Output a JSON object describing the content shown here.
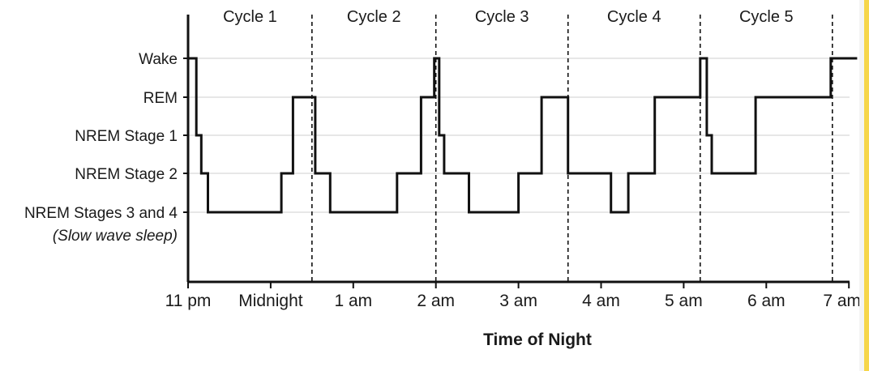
{
  "chart_data": {
    "type": "line",
    "title": "",
    "xlabel": "Time of Night",
    "ylabel": "",
    "x_ticks": [
      "11 pm",
      "Midnight",
      "1 am",
      "2 am",
      "3 am",
      "4 am",
      "5 am",
      "6 am",
      "7 am"
    ],
    "xlim_hours": [
      0,
      8.1
    ],
    "stages": [
      {
        "level": 4,
        "label": "Wake",
        "note": ""
      },
      {
        "level": 3,
        "label": "REM",
        "note": ""
      },
      {
        "level": 2,
        "label": "NREM Stage 1",
        "note": ""
      },
      {
        "level": 1,
        "label": "NREM Stage 2",
        "note": ""
      },
      {
        "level": 0,
        "label": "NREM Stages 3 and 4",
        "note": "(Slow wave sleep)"
      }
    ],
    "cycles": [
      {
        "label": "Cycle 1",
        "end_hour": 1.5
      },
      {
        "label": "Cycle 2",
        "end_hour": 3.0
      },
      {
        "label": "Cycle 3",
        "end_hour": 4.6
      },
      {
        "label": "Cycle 4",
        "end_hour": 6.2
      },
      {
        "label": "Cycle 5",
        "end_hour": 7.8
      }
    ],
    "series": [
      {
        "points": [
          [
            0.0,
            4
          ],
          [
            0.1,
            4
          ],
          [
            0.1,
            2
          ],
          [
            0.16,
            2
          ],
          [
            0.16,
            1
          ],
          [
            0.24,
            1
          ],
          [
            0.24,
            0
          ],
          [
            1.13,
            0
          ],
          [
            1.13,
            1
          ],
          [
            1.27,
            1
          ],
          [
            1.27,
            3
          ],
          [
            1.54,
            3
          ],
          [
            1.54,
            1
          ],
          [
            1.72,
            1
          ],
          [
            1.72,
            0
          ],
          [
            2.53,
            0
          ],
          [
            2.53,
            1
          ],
          [
            2.82,
            1
          ],
          [
            2.82,
            3
          ],
          [
            2.98,
            3
          ],
          [
            2.98,
            4
          ],
          [
            3.04,
            4
          ],
          [
            3.04,
            2
          ],
          [
            3.1,
            2
          ],
          [
            3.1,
            1
          ],
          [
            3.4,
            1
          ],
          [
            3.4,
            0
          ],
          [
            4.0,
            0
          ],
          [
            4.0,
            1
          ],
          [
            4.28,
            1
          ],
          [
            4.28,
            3
          ],
          [
            4.6,
            3
          ],
          [
            4.6,
            1
          ],
          [
            5.12,
            1
          ],
          [
            5.12,
            0
          ],
          [
            5.33,
            0
          ],
          [
            5.33,
            1
          ],
          [
            5.65,
            1
          ],
          [
            5.65,
            3
          ],
          [
            6.2,
            3
          ],
          [
            6.2,
            4
          ],
          [
            6.28,
            4
          ],
          [
            6.28,
            2
          ],
          [
            6.34,
            2
          ],
          [
            6.34,
            1
          ],
          [
            6.87,
            1
          ],
          [
            6.87,
            3
          ],
          [
            7.78,
            3
          ],
          [
            7.78,
            4
          ],
          [
            8.1,
            4
          ]
        ]
      }
    ],
    "grid": true,
    "colors": {
      "line": "#111111",
      "grid": "#cfcfcf",
      "axis": "#111111",
      "stripe": "#f6d64a"
    }
  }
}
